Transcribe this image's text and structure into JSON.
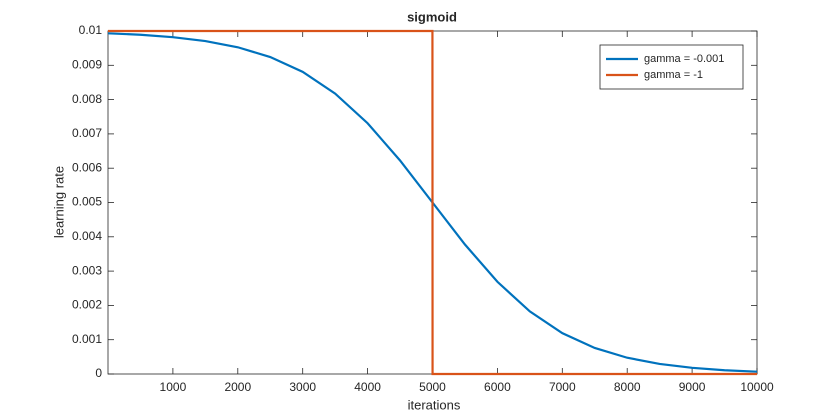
{
  "chart_data": {
    "type": "line",
    "title": "sigmoid",
    "x_label": "iterations",
    "y_label": "learning rate",
    "xlim": [
      0,
      10000
    ],
    "xticks": [
      1000,
      2000,
      3000,
      4000,
      5000,
      6000,
      7000,
      8000,
      9000,
      10000
    ],
    "ylim": [
      0,
      0.01
    ],
    "yticks": [
      0,
      0.001,
      0.002,
      0.003,
      0.004,
      0.005,
      0.006,
      0.007,
      0.008,
      0.009,
      0.01
    ],
    "legend": "upper right",
    "series": [
      {
        "name": "gamma = -0.001",
        "color": "#0072bd",
        "x": [
          0,
          500,
          1000,
          1500,
          2000,
          2500,
          3000,
          3500,
          4000,
          4500,
          5000,
          5500,
          6000,
          6500,
          7000,
          7500,
          8000,
          8500,
          9000,
          9500,
          10000
        ],
        "values": [
          0.009933,
          0.00989,
          0.00982,
          0.009707,
          0.009526,
          0.009241,
          0.008808,
          0.008176,
          0.007311,
          0.006225,
          0.005,
          0.003775,
          0.002689,
          0.001824,
          0.001192,
          0.000759,
          0.000474,
          0.000293,
          0.00018,
          0.00011,
          6.7e-05
        ]
      },
      {
        "name": "gamma = -1",
        "color": "#d95319",
        "x": [
          0,
          4999,
          5000,
          5001,
          10000
        ],
        "values": [
          0.01,
          0.01,
          0.005,
          0,
          0
        ]
      }
    ]
  }
}
